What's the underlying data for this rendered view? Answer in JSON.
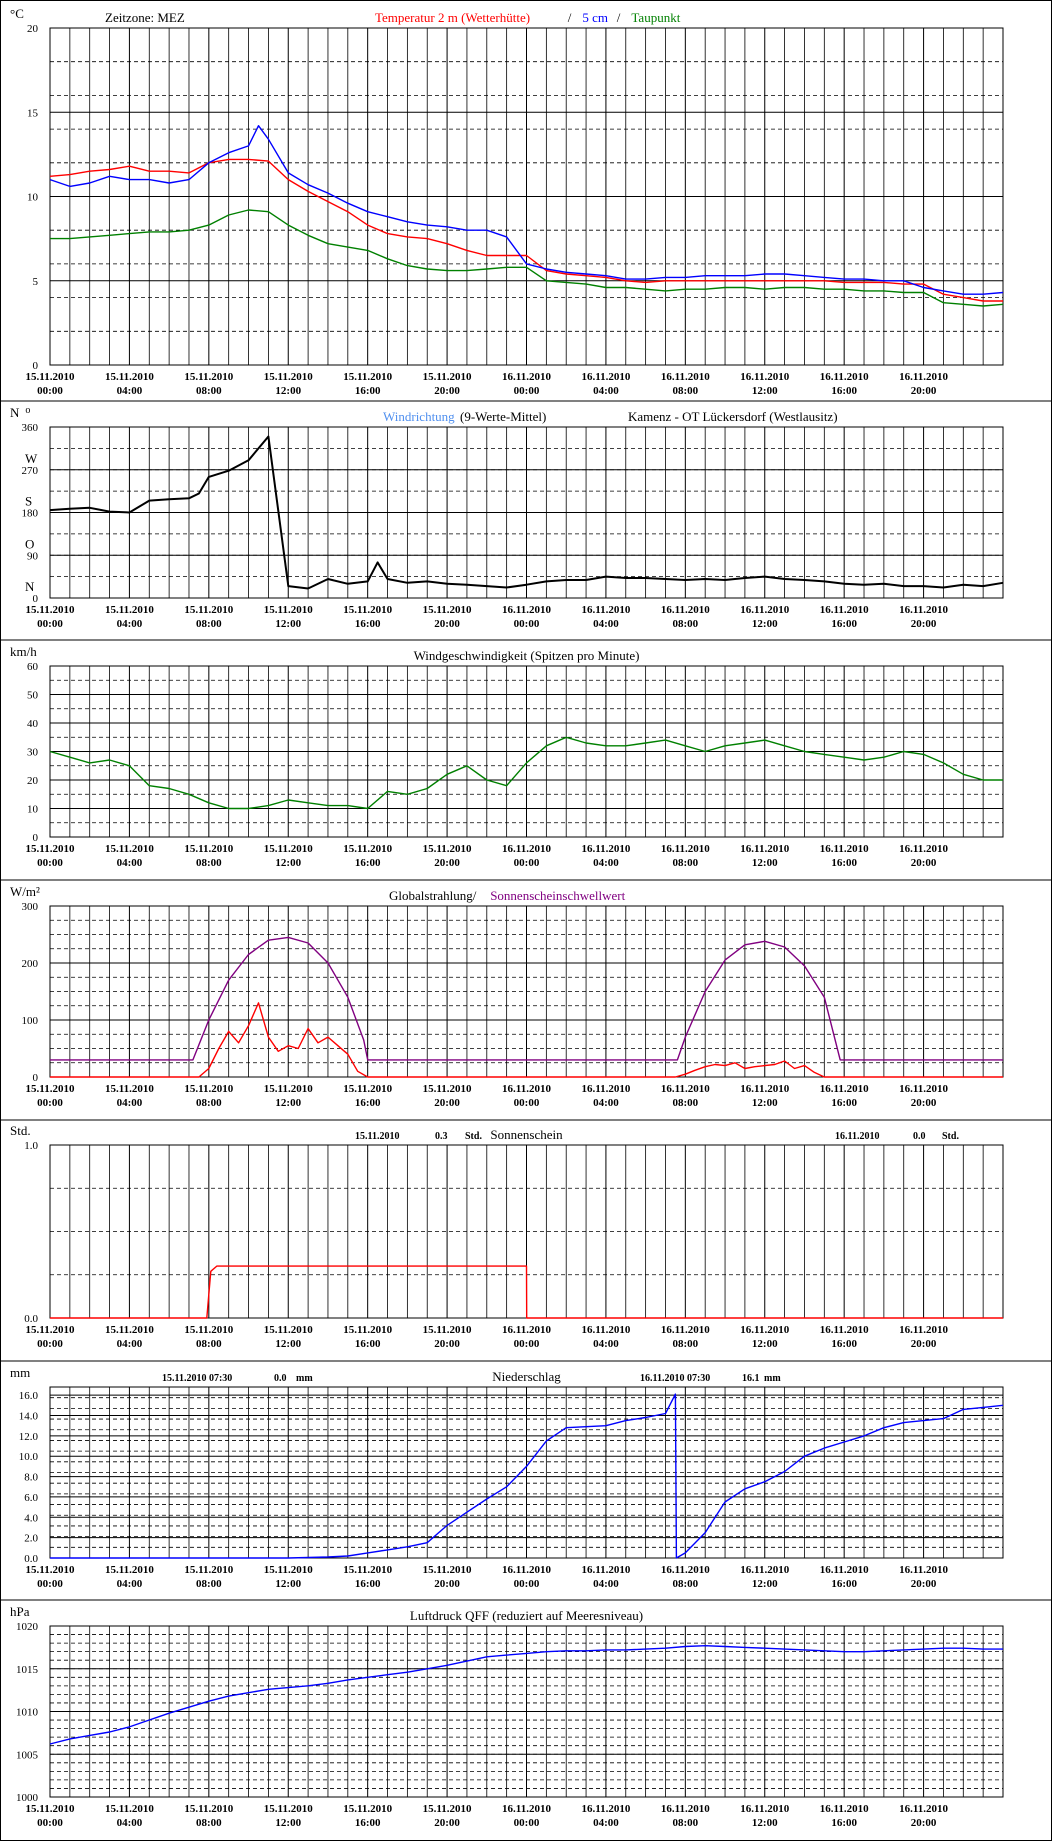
{
  "x_tick_labels": [
    [
      "15.11.2010",
      "00:00"
    ],
    [
      "15.11.2010",
      "04:00"
    ],
    [
      "15.11.2010",
      "08:00"
    ],
    [
      "15.11.2010",
      "12:00"
    ],
    [
      "15.11.2010",
      "16:00"
    ],
    [
      "15.11.2010",
      "20:00"
    ],
    [
      "16.11.2010",
      "00:00"
    ],
    [
      "16.11.2010",
      "04:00"
    ],
    [
      "16.11.2010",
      "08:00"
    ],
    [
      "16.11.2010",
      "12:00"
    ],
    [
      "16.11.2010",
      "16:00"
    ],
    [
      "16.11.2010",
      "20:00"
    ]
  ],
  "chart_data": [
    {
      "type": "line",
      "id": "temperature",
      "unit_label": "°C",
      "title_parts": [
        {
          "text": "Zeitzone: MEZ",
          "color": "#000000"
        },
        {
          "text": "Temperatur 2 m (Wetterhütte)",
          "color": "#ff0000"
        },
        {
          "text": "/",
          "color": "#000000"
        },
        {
          "text": "5 cm",
          "color": "#0000ff"
        },
        {
          "text": "/",
          "color": "#000000"
        },
        {
          "text": "Taupunkt",
          "color": "#008000"
        }
      ],
      "y_ticks": [
        "0",
        "5",
        "10",
        "15",
        "20"
      ],
      "ylim": [
        0,
        20
      ],
      "x_unit": "hours since 15.11.2010 00:00",
      "xlim": [
        0,
        48
      ],
      "series": [
        {
          "name": "Temperatur 2 m (Wetterhütte)",
          "color": "#ff0000",
          "x": [
            0,
            1,
            2,
            3,
            4,
            5,
            6,
            7,
            8,
            9,
            10,
            11,
            12,
            13,
            14,
            15,
            16,
            17,
            18,
            19,
            20,
            21,
            22,
            23,
            24,
            25,
            26,
            27,
            28,
            29,
            30,
            31,
            32,
            33,
            34,
            35,
            36,
            37,
            38,
            39,
            40,
            41,
            42,
            43,
            44,
            45,
            46,
            47,
            48
          ],
          "values": [
            11.2,
            11.3,
            11.5,
            11.6,
            11.8,
            11.5,
            11.5,
            11.4,
            12.0,
            12.2,
            12.2,
            12.1,
            11.0,
            10.3,
            9.7,
            9.1,
            8.3,
            7.8,
            7.6,
            7.5,
            7.2,
            6.8,
            6.5,
            6.5,
            6.5,
            5.6,
            5.4,
            5.3,
            5.2,
            5.0,
            4.9,
            5.0,
            5.0,
            5.0,
            5.0,
            5.0,
            5.0,
            5.0,
            5.0,
            5.0,
            4.9,
            4.9,
            4.9,
            4.8,
            4.8,
            4.2,
            4.0,
            3.8,
            3.8
          ]
        },
        {
          "name": "5 cm",
          "color": "#0000ff",
          "x": [
            0,
            1,
            2,
            3,
            4,
            5,
            6,
            7,
            8,
            9,
            10,
            10.5,
            11,
            12,
            13,
            14,
            15,
            16,
            17,
            18,
            19,
            20,
            21,
            22,
            23,
            24,
            25,
            26,
            27,
            28,
            29,
            30,
            31,
            32,
            33,
            34,
            35,
            36,
            37,
            38,
            39,
            40,
            41,
            42,
            43,
            44,
            45,
            46,
            47,
            48
          ],
          "values": [
            11.0,
            10.6,
            10.8,
            11.2,
            11.0,
            11.0,
            10.8,
            11.0,
            12.0,
            12.6,
            13.0,
            14.2,
            13.4,
            11.4,
            10.7,
            10.2,
            9.6,
            9.1,
            8.8,
            8.5,
            8.3,
            8.2,
            8.0,
            8.0,
            7.6,
            6.0,
            5.7,
            5.5,
            5.4,
            5.3,
            5.1,
            5.1,
            5.2,
            5.2,
            5.3,
            5.3,
            5.3,
            5.4,
            5.4,
            5.3,
            5.2,
            5.1,
            5.1,
            5.0,
            5.0,
            4.6,
            4.4,
            4.2,
            4.2,
            4.3
          ]
        },
        {
          "name": "Taupunkt",
          "color": "#008000",
          "x": [
            0,
            1,
            2,
            3,
            4,
            5,
            6,
            7,
            8,
            9,
            10,
            11,
            12,
            13,
            14,
            15,
            16,
            17,
            18,
            19,
            20,
            21,
            22,
            23,
            24,
            25,
            26,
            27,
            28,
            29,
            30,
            31,
            32,
            33,
            34,
            35,
            36,
            37,
            38,
            39,
            40,
            41,
            42,
            43,
            44,
            45,
            46,
            47,
            48
          ],
          "values": [
            7.5,
            7.5,
            7.6,
            7.7,
            7.8,
            7.9,
            7.9,
            8.0,
            8.3,
            8.9,
            9.2,
            9.1,
            8.3,
            7.7,
            7.2,
            7.0,
            6.8,
            6.3,
            5.9,
            5.7,
            5.6,
            5.6,
            5.7,
            5.8,
            5.8,
            5.0,
            4.9,
            4.8,
            4.6,
            4.6,
            4.5,
            4.4,
            4.5,
            4.5,
            4.6,
            4.6,
            4.5,
            4.6,
            4.6,
            4.5,
            4.5,
            4.4,
            4.4,
            4.3,
            4.3,
            3.7,
            3.6,
            3.5,
            3.6
          ]
        }
      ]
    },
    {
      "type": "line",
      "id": "wind-direction",
      "unit_label": "N",
      "unit_label_suffix": "o",
      "title_parts": [
        {
          "text": "Windrichtung",
          "color": "#4f8fef"
        },
        {
          "text": "(9-Werte-Mittel)",
          "color": "#000000"
        },
        {
          "text": "Kamenz - OT Lückersdorf (Westlausitz)",
          "color": "#000000"
        }
      ],
      "y_ticks": [
        "0",
        "90",
        "180",
        "270",
        "360"
      ],
      "y_compass": [
        "N",
        "O",
        "S",
        "W",
        "N"
      ],
      "ylim": [
        0,
        360
      ],
      "x_unit": "hours since 15.11.2010 00:00",
      "xlim": [
        0,
        48
      ],
      "series": [
        {
          "name": "Windrichtung (9-Werte-Mittel)",
          "color": "#000000",
          "x": [
            0,
            1,
            2,
            3,
            4,
            5,
            6,
            7,
            7.5,
            8,
            9,
            10,
            11,
            12,
            13,
            14,
            15,
            16,
            16.5,
            17,
            18,
            19,
            20,
            21,
            22,
            23,
            24,
            25,
            26,
            27,
            28,
            29,
            30,
            31,
            32,
            33,
            34,
            35,
            36,
            37,
            38,
            39,
            40,
            41,
            42,
            43,
            44,
            45,
            46,
            47,
            48
          ],
          "values": [
            185,
            188,
            190,
            182,
            180,
            205,
            208,
            210,
            220,
            255,
            268,
            290,
            340,
            25,
            20,
            40,
            30,
            35,
            75,
            40,
            32,
            35,
            30,
            28,
            25,
            22,
            28,
            35,
            38,
            38,
            45,
            42,
            42,
            40,
            38,
            40,
            38,
            42,
            45,
            40,
            38,
            35,
            30,
            28,
            30,
            25,
            25,
            22,
            28,
            25,
            32
          ]
        }
      ]
    },
    {
      "type": "line",
      "id": "wind-speed",
      "unit_label": "km/h",
      "title": "Windgeschwindigkeit (Spitzen pro Minute)",
      "y_ticks": [
        "0",
        "10",
        "20",
        "30",
        "40",
        "50",
        "60"
      ],
      "ylim": [
        0,
        60
      ],
      "x_unit": "hours since 15.11.2010 00:00",
      "xlim": [
        0,
        48
      ],
      "series": [
        {
          "name": "Windgeschwindigkeit",
          "color": "#008000",
          "x": [
            0,
            1,
            2,
            3,
            4,
            5,
            6,
            7,
            8,
            9,
            10,
            11,
            12,
            13,
            14,
            15,
            16,
            17,
            18,
            19,
            20,
            21,
            22,
            23,
            24,
            25,
            26,
            27,
            28,
            29,
            30,
            31,
            32,
            33,
            34,
            35,
            36,
            37,
            38,
            39,
            40,
            41,
            42,
            43,
            44,
            45,
            46,
            47,
            48
          ],
          "values": [
            30,
            28,
            26,
            27,
            25,
            18,
            17,
            15,
            12,
            10,
            10,
            11,
            13,
            12,
            11,
            11,
            10,
            16,
            15,
            17,
            22,
            25,
            20,
            18,
            26,
            32,
            35,
            33,
            32,
            32,
            33,
            34,
            32,
            30,
            32,
            33,
            34,
            32,
            30,
            29,
            28,
            27,
            28,
            30,
            29,
            26,
            22,
            20,
            20
          ]
        }
      ]
    },
    {
      "type": "line",
      "id": "global-radiation",
      "unit_label": "W/m²",
      "title_parts": [
        {
          "text": "Globalstrahlung/",
          "color": "#000000"
        },
        {
          "text": "Sonnenscheinschwellwert",
          "color": "#800080"
        }
      ],
      "y_ticks": [
        "0",
        "100",
        "200",
        "300"
      ],
      "ylim": [
        0,
        300
      ],
      "x_unit": "hours since 15.11.2010 00:00",
      "xlim": [
        0,
        48
      ],
      "series": [
        {
          "name": "Globalstrahlung",
          "color": "#ff0000",
          "x": [
            0,
            7.5,
            8,
            8.5,
            9,
            9.5,
            10,
            10.5,
            11,
            11.5,
            12,
            12.5,
            13,
            13.5,
            14,
            14.5,
            15,
            15.5,
            16,
            31.5,
            32,
            32.5,
            33,
            33.5,
            34,
            34.5,
            35,
            35.5,
            36,
            36.5,
            37,
            37.5,
            38,
            38.5,
            39,
            48
          ],
          "values": [
            0,
            0,
            15,
            50,
            80,
            60,
            90,
            130,
            70,
            45,
            55,
            50,
            85,
            60,
            70,
            55,
            40,
            10,
            0,
            0,
            5,
            12,
            18,
            22,
            20,
            25,
            15,
            18,
            20,
            22,
            28,
            15,
            20,
            8,
            0,
            0
          ]
        },
        {
          "name": "Sonnenscheinschwellwert",
          "color": "#800080",
          "x": [
            0,
            7.2,
            8,
            9,
            10,
            11,
            12,
            13,
            14,
            15,
            15.8,
            16,
            31.6,
            32,
            33,
            34,
            35,
            36,
            37,
            38,
            39,
            39.8,
            48
          ],
          "values": [
            30,
            30,
            100,
            170,
            215,
            240,
            245,
            235,
            200,
            140,
            65,
            30,
            30,
            70,
            150,
            205,
            232,
            238,
            228,
            195,
            140,
            30,
            30
          ]
        }
      ]
    },
    {
      "type": "line",
      "id": "sunshine",
      "unit_label": "Std.",
      "title": "Sonnenschein",
      "day_sums": [
        {
          "date": "15.11.2010",
          "value": "0.3",
          "unit": "Std."
        },
        {
          "date": "16.11.2010",
          "value": "0.0",
          "unit": "Std."
        }
      ],
      "y_ticks": [
        "0.0",
        "1.0"
      ],
      "ylim": [
        0,
        1
      ],
      "x_unit": "hours since 15.11.2010 00:00",
      "xlim": [
        0,
        48
      ],
      "series": [
        {
          "name": "Sonnenschein",
          "color": "#ff0000",
          "x": [
            0,
            7.9,
            8.1,
            8.4,
            8.7,
            24,
            24.01,
            48
          ],
          "values": [
            0,
            0,
            0.27,
            0.3,
            0.3,
            0.3,
            0,
            0
          ]
        }
      ]
    },
    {
      "type": "line",
      "id": "precipitation",
      "unit_label": "mm",
      "title": "Niederschlag",
      "day_sums": [
        {
          "date": "15.11.2010 07:30",
          "value": "0.0",
          "unit": "mm"
        },
        {
          "date": "16.11.2010 07:30",
          "value": "16.1",
          "unit": "mm"
        }
      ],
      "y_ticks": [
        "0.0",
        "2.0",
        "4.0",
        "6.0",
        "8.0",
        "10.0",
        "12.0",
        "14.0",
        "16.0"
      ],
      "ylim": [
        0,
        16.8
      ],
      "x_unit": "hours since 15.11.2010 00:00",
      "xlim": [
        0,
        48
      ],
      "series": [
        {
          "name": "Niederschlag",
          "color": "#0000ff",
          "x": [
            0,
            12,
            13,
            14,
            15,
            16,
            17,
            18,
            19,
            20,
            21,
            22,
            23,
            24,
            25,
            26,
            27,
            28,
            29,
            30,
            31,
            31.5,
            31.55,
            32,
            33,
            34,
            35,
            36,
            37,
            38,
            39,
            40,
            41,
            42,
            43,
            44,
            45,
            46,
            47,
            48
          ],
          "values": [
            0,
            0,
            0.05,
            0.1,
            0.2,
            0.5,
            0.8,
            1.1,
            1.5,
            3.2,
            4.5,
            5.8,
            7.0,
            9.0,
            11.5,
            12.8,
            12.9,
            13.0,
            13.5,
            13.8,
            14.2,
            16.1,
            0,
            0.5,
            2.5,
            5.5,
            6.8,
            7.5,
            8.5,
            10.0,
            10.8,
            11.4,
            12.0,
            12.8,
            13.3,
            13.5,
            13.7,
            14.6,
            14.8,
            15.0
          ]
        }
      ]
    },
    {
      "type": "line",
      "id": "air-pressure",
      "unit_label": "hPa",
      "title": "Luftdruck QFF (reduziert auf Meeresniveau)",
      "y_ticks": [
        "1000",
        "1005",
        "1010",
        "1015",
        "1020"
      ],
      "ylim": [
        1000,
        1020
      ],
      "x_unit": "hours since 15.11.2010 00:00",
      "xlim": [
        0,
        48
      ],
      "series": [
        {
          "name": "Luftdruck QFF",
          "color": "#0000ff",
          "x": [
            0,
            1,
            2,
            3,
            4,
            5,
            6,
            7,
            8,
            9,
            10,
            11,
            12,
            13,
            14,
            15,
            16,
            17,
            18,
            19,
            20,
            21,
            22,
            23,
            24,
            25,
            26,
            27,
            28,
            29,
            30,
            31,
            32,
            33,
            34,
            35,
            36,
            37,
            38,
            39,
            40,
            41,
            42,
            43,
            44,
            45,
            46,
            47,
            48
          ],
          "values": [
            1006.2,
            1006.8,
            1007.2,
            1007.6,
            1008.2,
            1009.0,
            1009.8,
            1010.5,
            1011.2,
            1011.8,
            1012.2,
            1012.6,
            1012.8,
            1013.0,
            1013.3,
            1013.7,
            1014.0,
            1014.3,
            1014.6,
            1015.0,
            1015.4,
            1015.9,
            1016.4,
            1016.6,
            1016.8,
            1017.0,
            1017.1,
            1017.1,
            1017.2,
            1017.2,
            1017.3,
            1017.4,
            1017.6,
            1017.7,
            1017.6,
            1017.5,
            1017.4,
            1017.3,
            1017.2,
            1017.1,
            1017.0,
            1017.0,
            1017.1,
            1017.2,
            1017.3,
            1017.4,
            1017.4,
            1017.3,
            1017.3
          ]
        }
      ]
    }
  ]
}
